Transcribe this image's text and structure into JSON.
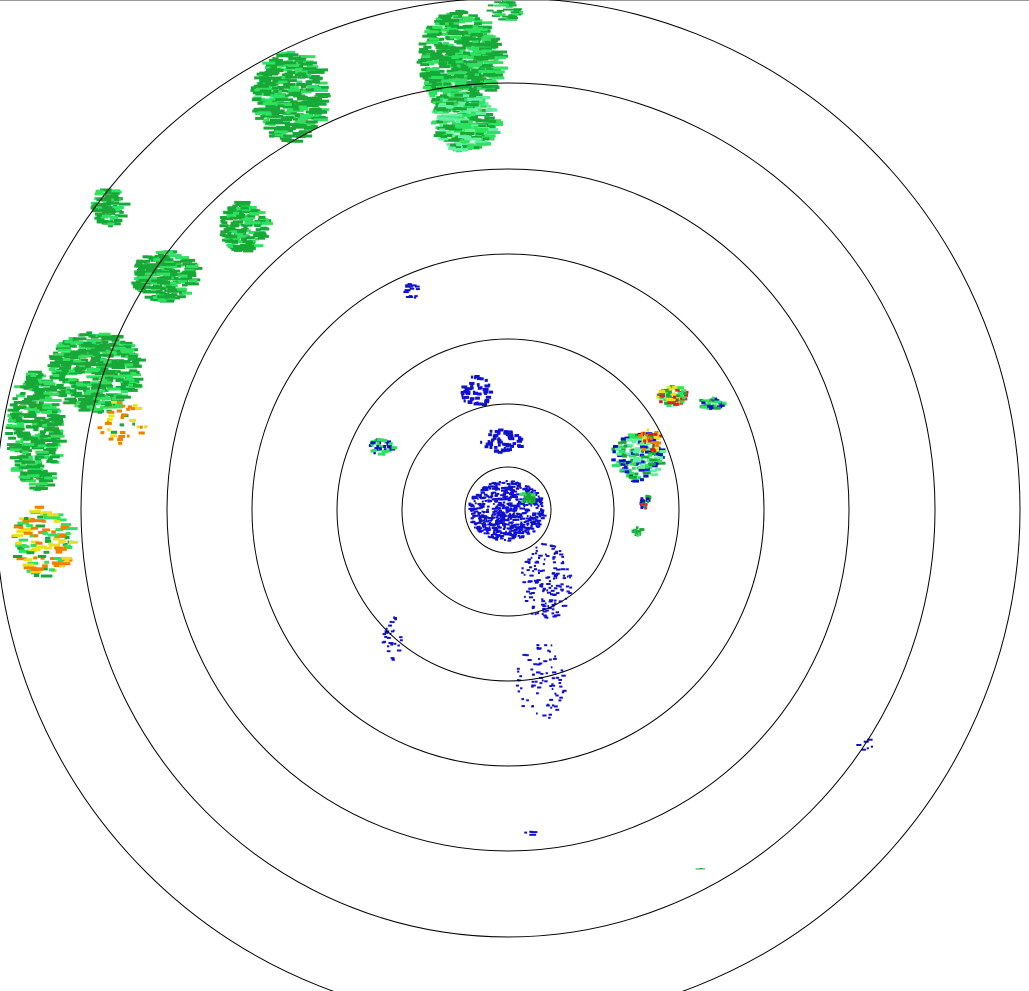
{
  "radar": {
    "range_ring_count": 7,
    "ring_color": "#000000",
    "echo_colors": {
      "weak": "#1010d0",
      "light": "#18a838",
      "moderate": "#30e060",
      "bright": "#60f0a0",
      "heavy": "#e8e020",
      "intense": "#f08000",
      "severe": "#e02020"
    }
  }
}
